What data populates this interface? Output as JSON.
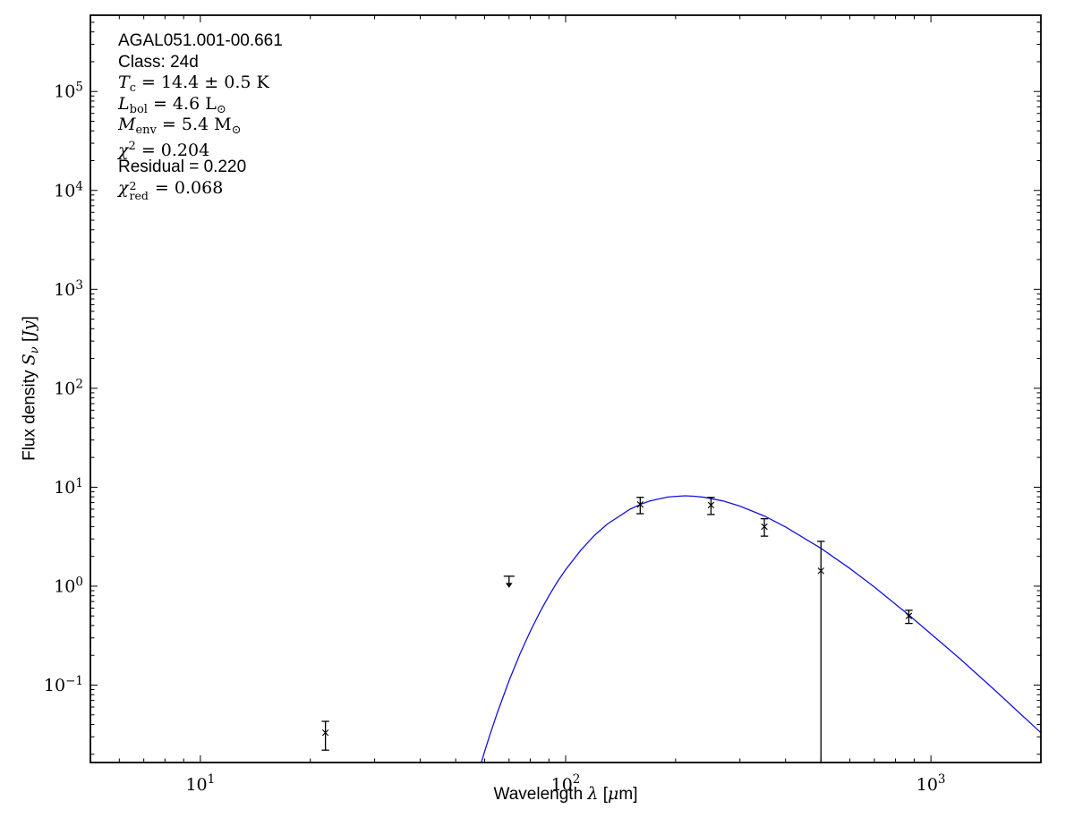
{
  "figure": {
    "background": "#ffffff",
    "frame_color": "#000000"
  },
  "annotation": {
    "lines": [
      {
        "name": "source-name",
        "segments": [
          {
            "t": "AGAL051.001-00.661",
            "k": "sans"
          }
        ]
      },
      {
        "name": "class-label",
        "segments": [
          {
            "t": "Class: 24d",
            "k": "sans"
          }
        ]
      },
      {
        "name": "temperature",
        "segments": [
          {
            "t": "T",
            "k": "it"
          },
          {
            "t": "c",
            "k": "sub"
          },
          {
            "t": " = 14.4 ± 0.5 K",
            "k": "rm"
          }
        ]
      },
      {
        "name": "bolometric-luminosity",
        "segments": [
          {
            "t": "L",
            "k": "it"
          },
          {
            "t": "bol",
            "k": "sub"
          },
          {
            "t": " = 4.6 L",
            "k": "rm"
          },
          {
            "t": "⊙",
            "k": "sub"
          }
        ]
      },
      {
        "name": "envelope-mass",
        "segments": [
          {
            "t": "M",
            "k": "it"
          },
          {
            "t": "env",
            "k": "sub"
          },
          {
            "t": " = 5.4 M",
            "k": "rm"
          },
          {
            "t": "⊙",
            "k": "sub"
          }
        ]
      },
      {
        "name": "chi-squared",
        "segments": [
          {
            "t": "χ",
            "k": "it"
          },
          {
            "t": "2",
            "k": "sup"
          },
          {
            "t": " = 0.204",
            "k": "rm"
          }
        ]
      },
      {
        "name": "residual",
        "segments": [
          {
            "t": "Residual = 0.220",
            "k": "sans"
          }
        ]
      },
      {
        "name": "chi-squared-reduced",
        "segments": [
          {
            "t": "χ",
            "k": "it"
          },
          {
            "k": "stack",
            "sup": "2",
            "sub": "red"
          },
          {
            "t": " = 0.068",
            "k": "rm"
          }
        ]
      }
    ]
  },
  "fit_parameters": {
    "source": "AGAL051.001-00.661",
    "class": "24d",
    "T_c_K": "14.4 ± 0.5",
    "L_bol_Lsun": 4.6,
    "M_env_Msun": 5.4,
    "chi2": 0.204,
    "residual": 0.22,
    "chi2_red": 0.068
  },
  "chart_data": {
    "type": "line",
    "description": "Spectral energy distribution: photometric data points with error bars and greybody model fit",
    "grid": false,
    "legend": false,
    "x_axis": {
      "label": "Wavelength λ [μm]",
      "label_segments": [
        {
          "t": "Wavelength ",
          "k": "sans"
        },
        {
          "t": "λ",
          "k": "it"
        },
        {
          "t": " [",
          "k": "sans"
        },
        {
          "t": "μ",
          "k": "it"
        },
        {
          "t": "m]",
          "k": "sans"
        }
      ],
      "scale": "log",
      "min": 5,
      "max": 2000,
      "major_tick_exponents": [
        1,
        2,
        3
      ]
    },
    "y_axis": {
      "label": "Flux density Sν [Jy]",
      "label_segments": [
        {
          "t": "Flux density ",
          "k": "sans"
        },
        {
          "t": "S",
          "k": "it"
        },
        {
          "t": "ν",
          "k": "subit"
        },
        {
          "t": " [",
          "k": "sans"
        },
        {
          "t": "Jy",
          "k": "it"
        },
        {
          "t": "]",
          "k": "sans"
        }
      ],
      "scale": "log",
      "min": 0.0165,
      "max": 590000,
      "major_tick_exponents": [
        -1,
        0,
        1,
        2,
        3,
        4,
        5
      ]
    },
    "model_curve": {
      "name": "greybody-fit",
      "color": "#1212e0",
      "T_K": 14.4,
      "points": [
        [
          58,
          0.0141
        ],
        [
          59,
          0.0174
        ],
        [
          60,
          0.0213
        ],
        [
          62,
          0.0313
        ],
        [
          65,
          0.0523
        ],
        [
          70,
          0.111
        ],
        [
          75,
          0.207
        ],
        [
          80,
          0.348
        ],
        [
          85,
          0.546
        ],
        [
          90,
          0.8
        ],
        [
          95,
          1.11
        ],
        [
          100,
          1.47
        ],
        [
          110,
          2.31
        ],
        [
          120,
          3.27
        ],
        [
          130,
          4.24
        ],
        [
          150,
          5.99
        ],
        [
          160,
          6.69
        ],
        [
          170,
          7.25
        ],
        [
          190,
          7.96
        ],
        [
          212,
          8.19
        ],
        [
          225,
          8.1
        ],
        [
          240,
          7.91
        ],
        [
          270,
          7.26
        ],
        [
          300,
          6.44
        ],
        [
          350,
          5.11
        ],
        [
          400,
          3.97
        ],
        [
          500,
          2.41
        ],
        [
          600,
          1.51
        ],
        [
          700,
          0.98
        ],
        [
          876,
          0.5
        ],
        [
          1000,
          0.33
        ],
        [
          1200,
          0.185
        ],
        [
          1500,
          0.088
        ],
        [
          1750,
          0.052
        ],
        [
          2000,
          0.033
        ]
      ]
    },
    "data_points": [
      {
        "wavelength_um": 22,
        "flux_jy": 0.033,
        "flux_upper_jy": 0.043,
        "flux_lower_jy": 0.022
      },
      {
        "wavelength_um": 70,
        "flux_jy": 1.26,
        "upper_limit": true,
        "arrow_tip_jy": 0.96
      },
      {
        "wavelength_um": 160,
        "flux_jy": 6.7,
        "flux_upper_jy": 7.9,
        "flux_lower_jy": 5.4
      },
      {
        "wavelength_um": 250,
        "flux_jy": 6.6,
        "flux_upper_jy": 7.9,
        "flux_lower_jy": 5.3
      },
      {
        "wavelength_um": 350,
        "flux_jy": 4.0,
        "flux_upper_jy": 4.8,
        "flux_lower_jy": 3.2
      },
      {
        "wavelength_um": 500,
        "flux_jy": 1.43,
        "flux_upper_jy": 2.84,
        "flux_lower_jy": 0.0165,
        "lower_clipped": true
      },
      {
        "wavelength_um": 870,
        "flux_jy": 0.5,
        "flux_upper_jy": 0.57,
        "flux_lower_jy": 0.42
      }
    ]
  }
}
